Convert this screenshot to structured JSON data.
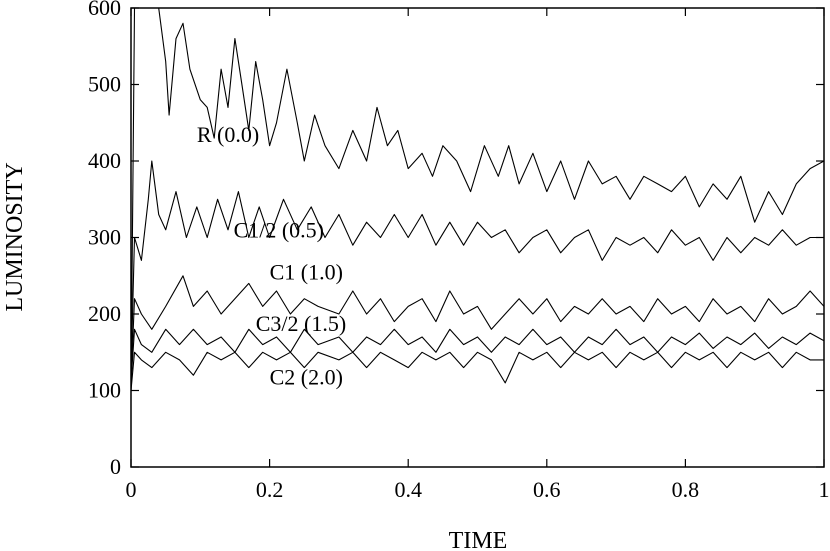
{
  "chart_data": {
    "type": "line",
    "xlabel": "TIME",
    "ylabel": "LUMINOSITY",
    "xlim": [
      0,
      1
    ],
    "ylim": [
      0,
      600
    ],
    "x_ticks": [
      0,
      0.2,
      0.4,
      0.6,
      0.8,
      1
    ],
    "x_tick_labels": [
      "0",
      "0.2",
      "0.4",
      "0.6",
      "0.8",
      "1"
    ],
    "y_ticks": [
      0,
      100,
      200,
      300,
      400,
      500,
      600
    ],
    "y_tick_labels": [
      "0",
      "100",
      "200",
      "300",
      "400",
      "500",
      "600"
    ],
    "grid": false,
    "legend": "inline labels",
    "line_color": "#000000",
    "series": [
      {
        "name": "R (0.0)",
        "label_at": {
          "x": 0.095,
          "y": 425
        },
        "points": [
          [
            0.0,
            100
          ],
          [
            0.005,
            600
          ],
          [
            0.02,
            640
          ],
          [
            0.04,
            600
          ],
          [
            0.05,
            530
          ],
          [
            0.055,
            460
          ],
          [
            0.065,
            560
          ],
          [
            0.075,
            580
          ],
          [
            0.085,
            520
          ],
          [
            0.1,
            480
          ],
          [
            0.11,
            470
          ],
          [
            0.12,
            430
          ],
          [
            0.13,
            520
          ],
          [
            0.14,
            470
          ],
          [
            0.15,
            560
          ],
          [
            0.16,
            500
          ],
          [
            0.17,
            440
          ],
          [
            0.18,
            530
          ],
          [
            0.19,
            480
          ],
          [
            0.2,
            420
          ],
          [
            0.21,
            450
          ],
          [
            0.225,
            520
          ],
          [
            0.24,
            450
          ],
          [
            0.25,
            400
          ],
          [
            0.265,
            460
          ],
          [
            0.28,
            420
          ],
          [
            0.3,
            390
          ],
          [
            0.32,
            440
          ],
          [
            0.34,
            400
          ],
          [
            0.355,
            470
          ],
          [
            0.37,
            420
          ],
          [
            0.385,
            440
          ],
          [
            0.4,
            390
          ],
          [
            0.42,
            410
          ],
          [
            0.435,
            380
          ],
          [
            0.45,
            420
          ],
          [
            0.47,
            400
          ],
          [
            0.49,
            360
          ],
          [
            0.51,
            420
          ],
          [
            0.53,
            380
          ],
          [
            0.545,
            420
          ],
          [
            0.56,
            370
          ],
          [
            0.58,
            410
          ],
          [
            0.6,
            360
          ],
          [
            0.62,
            400
          ],
          [
            0.64,
            350
          ],
          [
            0.66,
            400
          ],
          [
            0.68,
            370
          ],
          [
            0.7,
            380
          ],
          [
            0.72,
            350
          ],
          [
            0.74,
            380
          ],
          [
            0.76,
            370
          ],
          [
            0.78,
            360
          ],
          [
            0.8,
            380
          ],
          [
            0.82,
            340
          ],
          [
            0.84,
            370
          ],
          [
            0.86,
            350
          ],
          [
            0.88,
            380
          ],
          [
            0.9,
            320
          ],
          [
            0.92,
            360
          ],
          [
            0.94,
            330
          ],
          [
            0.96,
            370
          ],
          [
            0.98,
            390
          ],
          [
            1.0,
            400
          ]
        ]
      },
      {
        "name": "C1/2 (0.5)",
        "label_at": {
          "x": 0.148,
          "y": 300
        },
        "points": [
          [
            0.0,
            120
          ],
          [
            0.005,
            300
          ],
          [
            0.015,
            270
          ],
          [
            0.025,
            350
          ],
          [
            0.03,
            400
          ],
          [
            0.04,
            330
          ],
          [
            0.05,
            310
          ],
          [
            0.065,
            360
          ],
          [
            0.08,
            300
          ],
          [
            0.095,
            340
          ],
          [
            0.11,
            300
          ],
          [
            0.125,
            350
          ],
          [
            0.14,
            310
          ],
          [
            0.155,
            360
          ],
          [
            0.17,
            300
          ],
          [
            0.185,
            340
          ],
          [
            0.2,
            300
          ],
          [
            0.22,
            350
          ],
          [
            0.24,
            310
          ],
          [
            0.26,
            340
          ],
          [
            0.28,
            300
          ],
          [
            0.3,
            330
          ],
          [
            0.32,
            290
          ],
          [
            0.34,
            320
          ],
          [
            0.36,
            300
          ],
          [
            0.38,
            330
          ],
          [
            0.4,
            300
          ],
          [
            0.42,
            330
          ],
          [
            0.44,
            290
          ],
          [
            0.46,
            320
          ],
          [
            0.48,
            290
          ],
          [
            0.5,
            320
          ],
          [
            0.52,
            300
          ],
          [
            0.54,
            310
          ],
          [
            0.56,
            280
          ],
          [
            0.58,
            300
          ],
          [
            0.6,
            310
          ],
          [
            0.62,
            280
          ],
          [
            0.64,
            300
          ],
          [
            0.66,
            310
          ],
          [
            0.68,
            270
          ],
          [
            0.7,
            300
          ],
          [
            0.72,
            290
          ],
          [
            0.74,
            300
          ],
          [
            0.76,
            280
          ],
          [
            0.78,
            310
          ],
          [
            0.8,
            290
          ],
          [
            0.82,
            300
          ],
          [
            0.84,
            270
          ],
          [
            0.86,
            300
          ],
          [
            0.88,
            280
          ],
          [
            0.9,
            300
          ],
          [
            0.92,
            290
          ],
          [
            0.94,
            310
          ],
          [
            0.96,
            290
          ],
          [
            0.98,
            300
          ],
          [
            1.0,
            300
          ]
        ]
      },
      {
        "name": "C1 (1.0)",
        "label_at": {
          "x": 0.2,
          "y": 245
        },
        "points": [
          [
            0.0,
            110
          ],
          [
            0.005,
            220
          ],
          [
            0.015,
            200
          ],
          [
            0.03,
            180
          ],
          [
            0.05,
            210
          ],
          [
            0.075,
            250
          ],
          [
            0.09,
            210
          ],
          [
            0.11,
            230
          ],
          [
            0.13,
            200
          ],
          [
            0.15,
            220
          ],
          [
            0.17,
            240
          ],
          [
            0.19,
            210
          ],
          [
            0.21,
            230
          ],
          [
            0.23,
            200
          ],
          [
            0.25,
            220
          ],
          [
            0.27,
            210
          ],
          [
            0.3,
            200
          ],
          [
            0.32,
            230
          ],
          [
            0.34,
            200
          ],
          [
            0.36,
            220
          ],
          [
            0.38,
            190
          ],
          [
            0.4,
            210
          ],
          [
            0.42,
            220
          ],
          [
            0.44,
            190
          ],
          [
            0.46,
            230
          ],
          [
            0.48,
            200
          ],
          [
            0.5,
            210
          ],
          [
            0.52,
            180
          ],
          [
            0.54,
            200
          ],
          [
            0.56,
            220
          ],
          [
            0.58,
            200
          ],
          [
            0.6,
            220
          ],
          [
            0.62,
            190
          ],
          [
            0.64,
            210
          ],
          [
            0.66,
            200
          ],
          [
            0.68,
            220
          ],
          [
            0.7,
            200
          ],
          [
            0.72,
            210
          ],
          [
            0.74,
            190
          ],
          [
            0.76,
            220
          ],
          [
            0.78,
            200
          ],
          [
            0.8,
            210
          ],
          [
            0.82,
            190
          ],
          [
            0.84,
            220
          ],
          [
            0.86,
            200
          ],
          [
            0.88,
            210
          ],
          [
            0.9,
            190
          ],
          [
            0.92,
            220
          ],
          [
            0.94,
            200
          ],
          [
            0.96,
            210
          ],
          [
            0.98,
            230
          ],
          [
            1.0,
            210
          ]
        ]
      },
      {
        "name": "C3/2 (1.5)",
        "label_at": {
          "x": 0.18,
          "y": 178
        },
        "points": [
          [
            0.0,
            110
          ],
          [
            0.005,
            180
          ],
          [
            0.015,
            160
          ],
          [
            0.03,
            150
          ],
          [
            0.05,
            180
          ],
          [
            0.07,
            160
          ],
          [
            0.09,
            180
          ],
          [
            0.11,
            160
          ],
          [
            0.13,
            170
          ],
          [
            0.15,
            150
          ],
          [
            0.17,
            180
          ],
          [
            0.19,
            160
          ],
          [
            0.21,
            170
          ],
          [
            0.23,
            150
          ],
          [
            0.25,
            180
          ],
          [
            0.27,
            160
          ],
          [
            0.3,
            170
          ],
          [
            0.32,
            150
          ],
          [
            0.34,
            170
          ],
          [
            0.36,
            160
          ],
          [
            0.38,
            180
          ],
          [
            0.4,
            160
          ],
          [
            0.42,
            170
          ],
          [
            0.44,
            150
          ],
          [
            0.46,
            180
          ],
          [
            0.48,
            160
          ],
          [
            0.5,
            170
          ],
          [
            0.52,
            150
          ],
          [
            0.54,
            170
          ],
          [
            0.56,
            160
          ],
          [
            0.58,
            180
          ],
          [
            0.6,
            160
          ],
          [
            0.62,
            170
          ],
          [
            0.64,
            150
          ],
          [
            0.66,
            170
          ],
          [
            0.68,
            160
          ],
          [
            0.7,
            180
          ],
          [
            0.72,
            160
          ],
          [
            0.74,
            170
          ],
          [
            0.76,
            150
          ],
          [
            0.78,
            170
          ],
          [
            0.8,
            160
          ],
          [
            0.82,
            175
          ],
          [
            0.84,
            155
          ],
          [
            0.86,
            170
          ],
          [
            0.88,
            160
          ],
          [
            0.9,
            175
          ],
          [
            0.92,
            155
          ],
          [
            0.94,
            170
          ],
          [
            0.96,
            160
          ],
          [
            0.98,
            175
          ],
          [
            1.0,
            165
          ]
        ]
      },
      {
        "name": "C2 (2.0)",
        "label_at": {
          "x": 0.2,
          "y": 108
        },
        "points": [
          [
            0.0,
            100
          ],
          [
            0.005,
            150
          ],
          [
            0.015,
            140
          ],
          [
            0.03,
            130
          ],
          [
            0.05,
            150
          ],
          [
            0.07,
            140
          ],
          [
            0.09,
            120
          ],
          [
            0.11,
            150
          ],
          [
            0.13,
            140
          ],
          [
            0.15,
            150
          ],
          [
            0.17,
            130
          ],
          [
            0.19,
            150
          ],
          [
            0.21,
            140
          ],
          [
            0.23,
            150
          ],
          [
            0.25,
            130
          ],
          [
            0.27,
            150
          ],
          [
            0.3,
            140
          ],
          [
            0.32,
            150
          ],
          [
            0.34,
            130
          ],
          [
            0.36,
            150
          ],
          [
            0.38,
            140
          ],
          [
            0.4,
            130
          ],
          [
            0.42,
            150
          ],
          [
            0.44,
            140
          ],
          [
            0.46,
            150
          ],
          [
            0.48,
            130
          ],
          [
            0.5,
            150
          ],
          [
            0.52,
            140
          ],
          [
            0.54,
            110
          ],
          [
            0.56,
            150
          ],
          [
            0.58,
            140
          ],
          [
            0.6,
            150
          ],
          [
            0.62,
            130
          ],
          [
            0.64,
            150
          ],
          [
            0.66,
            140
          ],
          [
            0.68,
            150
          ],
          [
            0.7,
            130
          ],
          [
            0.72,
            150
          ],
          [
            0.74,
            140
          ],
          [
            0.76,
            150
          ],
          [
            0.78,
            130
          ],
          [
            0.8,
            150
          ],
          [
            0.82,
            140
          ],
          [
            0.84,
            150
          ],
          [
            0.86,
            130
          ],
          [
            0.88,
            150
          ],
          [
            0.9,
            140
          ],
          [
            0.92,
            150
          ],
          [
            0.94,
            130
          ],
          [
            0.96,
            150
          ],
          [
            0.98,
            140
          ],
          [
            1.0,
            140
          ]
        ]
      }
    ]
  }
}
